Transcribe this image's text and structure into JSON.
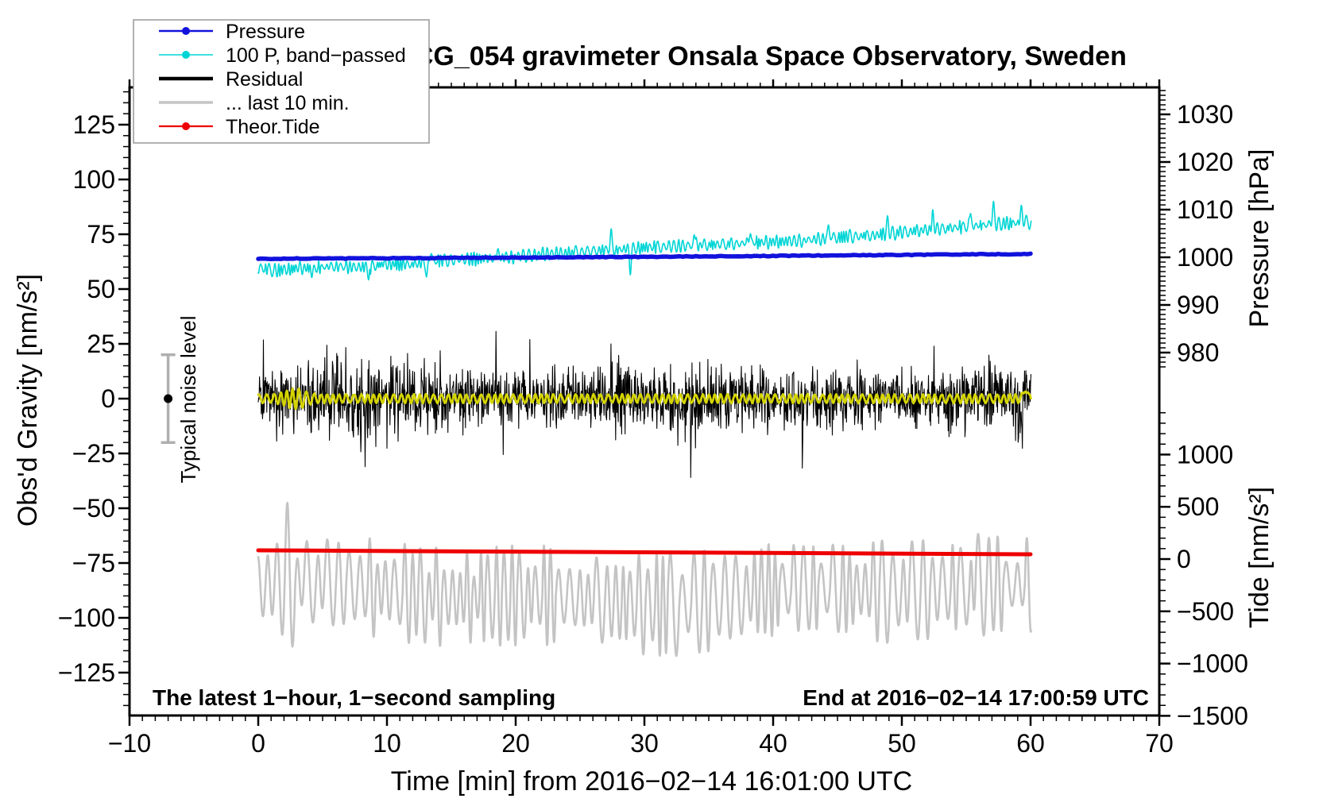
{
  "window": {
    "title": "SCG_054 gravimeter Onsala Space Observatory, Sweden"
  },
  "chart_data": {
    "type": "line",
    "title": "SCG_054 gravimeter Onsala Space Observatory, Sweden",
    "xlabel": "Time [min] from 2016−02−14 16:01:00 UTC",
    "x_axis": {
      "range": [
        -10,
        70
      ],
      "major_ticks": [
        -10,
        0,
        10,
        20,
        30,
        40,
        50,
        60,
        70
      ],
      "minor_step": 1
    },
    "axes": {
      "left": {
        "label": "Obs'd Gravity [nm/s²]",
        "range": [
          -144.5,
          142
        ],
        "major_ticks": [
          125,
          100,
          75,
          50,
          25,
          0,
          -25,
          -50,
          -75,
          -100,
          -125
        ],
        "minor_step": 5,
        "minor_range": [
          -140,
          140
        ]
      },
      "right_pressure": {
        "label": "Pressure [hPa]",
        "major_ticks": [
          1030,
          1020,
          1010,
          1000,
          990,
          980
        ],
        "minor_step": 1,
        "minor_range": [
          977,
          1035
        ]
      },
      "right_tide": {
        "label": "Tide [nm/s²]",
        "major_ticks": [
          1000,
          500,
          0,
          -500,
          -1000,
          -1500
        ],
        "minor_step": 100,
        "minor_range": [
          -1400,
          1400
        ]
      }
    },
    "legend": {
      "items": [
        {
          "label": "Pressure",
          "color": "#1212dd",
          "line_width": 2.5,
          "marker": true
        },
        {
          "label": "100 P, band−passed",
          "color": "#00d5d5",
          "line_width": 1.6,
          "marker": true
        },
        {
          "label": "Residual",
          "color": "#000000",
          "line_width": 4.5,
          "marker": false
        },
        {
          "label": "... last 10 min.",
          "color": "#c4c4c4",
          "line_width": 3.5,
          "marker": false
        },
        {
          "label": "Theor.Tide",
          "color": "#ee0000",
          "line_width": 2.2,
          "marker": true
        }
      ]
    },
    "annotations": {
      "sampling_note": "The latest 1−hour, 1−second sampling",
      "end_note": "End at 2016−02−14 17:00:59 UTC",
      "noise_label": "Typical noise level",
      "noise_bar": {
        "t_min": -7,
        "center_gravity": 0,
        "half_range_gravity": 20
      }
    },
    "noise_seed": 54,
    "series": [
      {
        "id": "residual_last10",
        "name": "... last 10 min.",
        "color": "#c4c4c4",
        "width": 2.6,
        "unit": "gravity",
        "t_start": 0,
        "t_end": 60.05,
        "step": 0.02,
        "center": -89,
        "amp_range": [
          9,
          24
        ],
        "period_range": [
          0.45,
          0.95
        ],
        "boosts": [
          {
            "t": 2.2,
            "width": 0.5,
            "factor": 1.55
          },
          {
            "t": 48.7,
            "width": 0.45,
            "factor": 1.4
          }
        ]
      },
      {
        "id": "theor_tide",
        "name": "Theor.Tide",
        "color": "#ee0000",
        "width": 5,
        "unit": "gravity",
        "x": [
          0,
          60
        ],
        "y": [
          -69.2,
          -71.0
        ],
        "tide_axis_values_nms2": [
          85,
          45
        ]
      },
      {
        "id": "residual",
        "name": "Residual",
        "color": "#000000",
        "width": 1.1,
        "unit": "gravity",
        "t_start": 0,
        "t_end": 60.05,
        "points_per_min": 30,
        "mean": 0,
        "sigma": 14,
        "spike_prob": 0.02,
        "spike_amp": 22
      },
      {
        "id": "residual_filtered",
        "name": "Residual low-pass (yellow, unlabeled)",
        "color": "#d4d400",
        "width": 2.8,
        "unit": "gravity",
        "t_start": 0,
        "t_end": 60.05,
        "step": 0.03,
        "base_amp": 1.9,
        "period": 0.52,
        "jitter": 0.5,
        "burst": {
          "t": 2.9,
          "width": 1.0,
          "factor": 2.5
        },
        "end_bump": {
          "t": 59.6,
          "width": 0.18,
          "amp": 5
        }
      },
      {
        "id": "pressure_bandpassed",
        "name": "100 P, band−passed",
        "color": "#00d5d5",
        "width": 1.6,
        "unit": "gravity",
        "t_start": 0,
        "t_end": 60.05,
        "step": 0.025,
        "trend_x": [
          0,
          1,
          2,
          3,
          4,
          6,
          8,
          10,
          12,
          14,
          16,
          18,
          20,
          22,
          24,
          26,
          28,
          30,
          32,
          34,
          36,
          38,
          40,
          42,
          44,
          46,
          48,
          50,
          52,
          54,
          56,
          58,
          60
        ],
        "trend_y": [
          60,
          58.5,
          58.8,
          59.5,
          59.8,
          60.3,
          60.0,
          61.5,
          61.2,
          63.0,
          63.6,
          64.0,
          64.6,
          66.0,
          66.4,
          67.5,
          68.0,
          69.0,
          69.5,
          70.0,
          70.4,
          71.0,
          71.5,
          72.0,
          73.0,
          74.0,
          74.6,
          76.0,
          77.0,
          78.0,
          79.0,
          80.0,
          80.5
        ],
        "amp_range": [
          1,
          3.2
        ],
        "period_range": [
          0.15,
          0.5
        ],
        "jitter": 0.3,
        "spikes": [
          {
            "t": 4.2,
            "dg": -4.5
          },
          {
            "t": 8.6,
            "dg": -5.5
          },
          {
            "t": 13.1,
            "dg": -6.5
          },
          {
            "t": 13.4,
            "dg": 5
          },
          {
            "t": 18.6,
            "dg": 4
          },
          {
            "t": 27.4,
            "dg": 8
          },
          {
            "t": 28.9,
            "dg": -9.5
          },
          {
            "t": 33.9,
            "dg": 5
          },
          {
            "t": 38.2,
            "dg": 5
          },
          {
            "t": 44.3,
            "dg": 5.5
          },
          {
            "t": 48.9,
            "dg": 6
          },
          {
            "t": 52.4,
            "dg": 7
          },
          {
            "t": 55.3,
            "dg": 6
          },
          {
            "t": 57.1,
            "dg": 9
          },
          {
            "t": 59.3,
            "dg": 6
          }
        ]
      },
      {
        "id": "pressure",
        "name": "Pressure",
        "color": "#1212dd",
        "width": 5.5,
        "unit": "hPa",
        "t_start": 0,
        "t_end": 60.05,
        "step": 0.25,
        "x": [
          0,
          5,
          10,
          15,
          20,
          25,
          30,
          35,
          40,
          45,
          50,
          55,
          60
        ],
        "y_hpa": [
          999.7,
          999.75,
          999.8,
          999.9,
          999.95,
          1000.05,
          1000.1,
          1000.2,
          1000.3,
          1000.4,
          1000.5,
          1000.6,
          1000.7
        ]
      }
    ]
  }
}
